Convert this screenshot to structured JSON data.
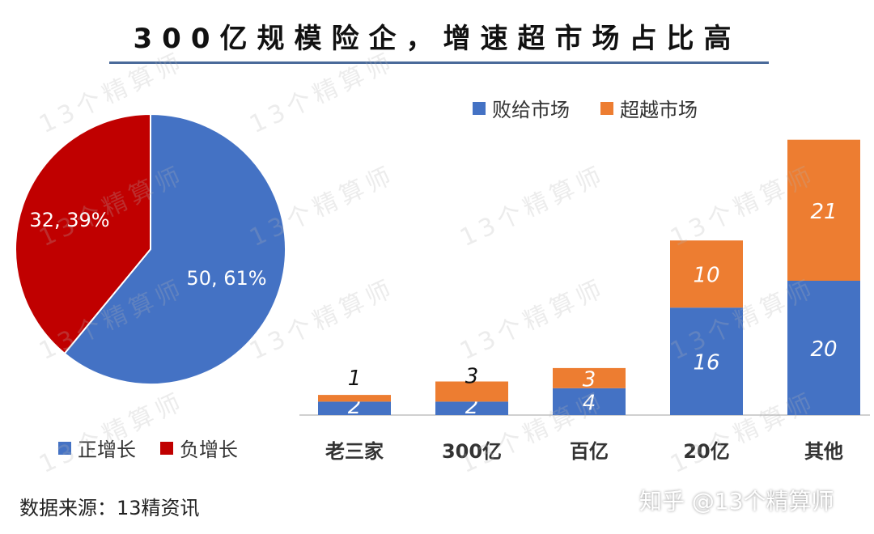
{
  "title": "300亿规模险企，增速超市场占比高",
  "watermark": "13个精算师",
  "source": "数据来源：13精资讯",
  "credit": "知乎 @13个精算师",
  "colors": {
    "blue": "#4472c4",
    "orange": "#ed7d31",
    "red": "#c00000"
  },
  "chart_data": [
    {
      "type": "pie",
      "slices": [
        {
          "name": "正增长",
          "value": 50,
          "percent": 61,
          "label": "50, 61%"
        },
        {
          "name": "负增长",
          "value": 32,
          "percent": 39,
          "label": "32, 39%"
        }
      ],
      "legend": [
        "正增长",
        "负增长"
      ],
      "legend_position": "bottom"
    },
    {
      "type": "bar",
      "stacked": true,
      "categories": [
        "老三家",
        "300亿",
        "百亿",
        "20亿",
        "其他"
      ],
      "series": [
        {
          "name": "败给市场",
          "values": [
            2,
            2,
            4,
            16,
            20
          ]
        },
        {
          "name": "超越市场",
          "values": [
            1,
            3,
            3,
            10,
            21
          ]
        }
      ],
      "legend_position": "top",
      "ylim": [
        0,
        42
      ]
    }
  ]
}
